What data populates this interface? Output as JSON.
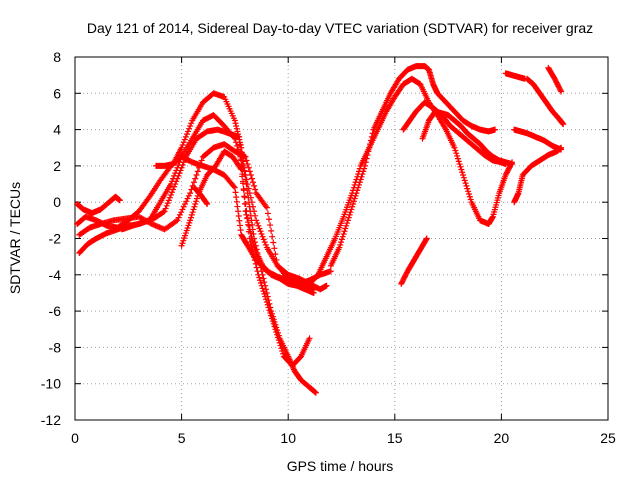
{
  "chart_data": {
    "type": "scatter",
    "title": "Day 121 of 2014, Sidereal Day-to-day VTEC variation (SDTVAR) for receiver graz",
    "xlabel": "GPS time / hours",
    "ylabel": "SDTVAR / TECUs",
    "xlim": [
      0,
      25
    ],
    "ylim": [
      -12,
      8
    ],
    "xticks": [
      "0",
      "5",
      "10",
      "15",
      "20",
      "25"
    ],
    "yticks": [
      "-12",
      "-10",
      "-8",
      "-6",
      "-4",
      "-2",
      "0",
      "2",
      "4",
      "6",
      "8"
    ],
    "grid": true,
    "legend": "none",
    "marker": "+",
    "series_color": "#ff0000",
    "series": [
      {
        "x": [
          0.1,
          0.5,
          1.0,
          1.5,
          2.0,
          2.5,
          3.0,
          3.5,
          4.0,
          4.5,
          5.0,
          5.5,
          6.0,
          6.5,
          7.0,
          7.5,
          7.8,
          8.1,
          8.5,
          9.0,
          9.5,
          10.0,
          10.5,
          11.0,
          11.3
        ],
        "y": [
          -1.2,
          -0.8,
          -1.0,
          -1.3,
          -1.4,
          -1.0,
          -0.5,
          0.3,
          1.2,
          2.0,
          2.5,
          2.2,
          2.0,
          1.8,
          1.5,
          0.8,
          -1.8,
          -2.4,
          -3.2,
          -3.8,
          -4.1,
          -4.3,
          -4.5,
          -4.7,
          -4.7
        ]
      },
      {
        "x": [
          0.2,
          0.6,
          1.0,
          1.5,
          2.0,
          2.5,
          3.0,
          3.5,
          4.0,
          4.5,
          5.0,
          5.5,
          6.0,
          6.5,
          7.0,
          7.5,
          8.0,
          8.5,
          9.0,
          9.5,
          10.0,
          10.5,
          11.0,
          11.5,
          11.8
        ],
        "y": [
          -2.8,
          -2.3,
          -2.0,
          -1.7,
          -1.5,
          -1.3,
          -1.2,
          -1.0,
          0.0,
          1.0,
          2.5,
          3.5,
          4.5,
          4.8,
          4.2,
          3.5,
          1.5,
          -1.0,
          -2.5,
          -3.5,
          -4.0,
          -4.2,
          -4.5,
          -4.8,
          -4.6
        ]
      },
      {
        "x": [
          0.2,
          0.7,
          1.2,
          1.8,
          2.4,
          3.0,
          3.6,
          4.2,
          4.8,
          5.4,
          6.0,
          6.5,
          7.0,
          7.5,
          8.0,
          8.5,
          9.0,
          9.5,
          10.0,
          10.5,
          11.0,
          11.5,
          12.0
        ],
        "y": [
          -1.8,
          -1.4,
          -1.2,
          -1.0,
          -0.9,
          -0.8,
          -1.2,
          -1.5,
          -1.0,
          0.5,
          2.5,
          3.0,
          3.2,
          2.8,
          2.5,
          0.5,
          -0.3,
          -3.5,
          -4.2,
          -4.5,
          -4.3,
          -4.0,
          -3.8
        ]
      },
      {
        "x": [
          2.2,
          2.7,
          3.2,
          3.7,
          4.2,
          4.7,
          5.2,
          5.7,
          6.2,
          6.7,
          7.2,
          7.7,
          8.0,
          8.4,
          8.8,
          9.2,
          9.6,
          10.0,
          10.4,
          10.8,
          11.2
        ],
        "y": [
          -1.5,
          -1.3,
          -1.1,
          -0.9,
          -0.5,
          1.0,
          2.5,
          3.5,
          3.9,
          4.0,
          3.8,
          3.6,
          -0.5,
          -2.5,
          -3.5,
          -4.0,
          -4.2,
          -4.5,
          -4.6,
          -4.8,
          -5.0
        ]
      },
      {
        "x": [
          3.8,
          4.2,
          4.6,
          5.0,
          5.5,
          6.0,
          6.5,
          7.0,
          7.5,
          7.8,
          8.1,
          8.4,
          8.8,
          9.2,
          9.6,
          10.0,
          10.3,
          10.6,
          11.0,
          11.3
        ],
        "y": [
          2.0,
          2.0,
          2.1,
          3.0,
          4.5,
          5.5,
          6.0,
          5.8,
          4.5,
          3.0,
          0.5,
          -2.0,
          -4.0,
          -6.0,
          -7.5,
          -8.5,
          -9.3,
          -9.8,
          -10.2,
          -10.5
        ]
      },
      {
        "x": [
          0.1,
          0.4,
          0.8,
          1.2,
          1.6,
          1.9,
          2.1
        ],
        "y": [
          -0.1,
          -0.4,
          -0.6,
          -0.4,
          0.0,
          0.3,
          0.1
        ]
      },
      {
        "x": [
          5.0,
          5.4,
          5.8,
          6.2,
          6.6,
          7.0,
          7.4,
          7.8,
          8.2,
          8.6,
          9.0,
          9.4,
          9.8,
          10.2,
          10.6,
          11.0
        ],
        "y": [
          -2.4,
          -1.0,
          0.5,
          1.5,
          2.0,
          2.8,
          2.5,
          1.8,
          -2.0,
          -4.0,
          -5.5,
          -7.0,
          -8.5,
          -9.0,
          -8.5,
          -7.5
        ]
      },
      {
        "x": [
          5.6,
          5.9,
          6.2
        ],
        "y": [
          0.8,
          0.4,
          -0.1
        ]
      },
      {
        "x": [
          11.0,
          11.4,
          11.8,
          12.2,
          12.6,
          13.0,
          13.4,
          13.8,
          14.2,
          14.6,
          15.0,
          15.4,
          15.8,
          16.2,
          16.6,
          17.0,
          17.4,
          17.8,
          18.2,
          18.6,
          19.0,
          19.4,
          19.6,
          19.9,
          20.2,
          20.5
        ],
        "y": [
          -4.5,
          -4.0,
          -3.0,
          -2.0,
          -0.8,
          0.5,
          2.0,
          3.0,
          4.0,
          5.0,
          5.8,
          6.5,
          6.8,
          6.5,
          5.5,
          4.8,
          4.0,
          3.0,
          1.5,
          0.0,
          -1.0,
          -1.2,
          -0.8,
          0.5,
          1.5,
          2.2
        ]
      },
      {
        "x": [
          12.0,
          12.4,
          12.8,
          13.2,
          13.6,
          14.0,
          14.4,
          14.8,
          15.2,
          15.6,
          16.0,
          16.4,
          16.6,
          16.8,
          17.0,
          17.4,
          17.8,
          18.2,
          18.6,
          19.0,
          19.4,
          19.7
        ],
        "y": [
          -3.5,
          -2.5,
          -1.0,
          0.5,
          2.0,
          4.0,
          5.0,
          6.0,
          6.8,
          7.3,
          7.5,
          7.5,
          7.3,
          6.5,
          6.0,
          5.5,
          5.0,
          4.5,
          4.2,
          4.0,
          3.9,
          4.0
        ]
      },
      {
        "x": [
          15.4,
          15.7,
          16.0,
          16.4,
          16.8,
          17.2,
          17.6,
          18.0,
          18.4,
          18.8,
          19.2,
          19.6,
          20.0,
          20.2
        ],
        "y": [
          4.0,
          4.5,
          5.0,
          5.5,
          5.2,
          4.8,
          4.2,
          3.8,
          3.4,
          3.0,
          2.6,
          2.3,
          2.2,
          2.1
        ]
      },
      {
        "x": [
          16.3,
          16.6,
          16.9,
          17.2,
          17.5,
          17.8,
          18.1,
          18.4,
          18.7,
          19.0,
          19.3,
          19.6,
          19.9,
          20.2,
          20.5
        ],
        "y": [
          3.5,
          4.5,
          5.0,
          4.9,
          4.8,
          4.5,
          4.2,
          3.8,
          3.5,
          3.2,
          2.8,
          2.5,
          2.3,
          2.2,
          2.1
        ]
      },
      {
        "x": [
          15.3,
          15.6,
          15.9,
          16.2,
          16.5
        ],
        "y": [
          -4.5,
          -3.8,
          -3.2,
          -2.6,
          -2.0
        ]
      },
      {
        "x": [
          20.2,
          20.5,
          20.8,
          21.1
        ],
        "y": [
          7.1,
          7.0,
          6.9,
          6.8
        ]
      },
      {
        "x": [
          20.6,
          20.9,
          21.2,
          21.6,
          22.0,
          22.4,
          22.8
        ],
        "y": [
          4.0,
          3.9,
          3.8,
          3.6,
          3.4,
          3.1,
          2.9
        ]
      },
      {
        "x": [
          20.6,
          20.8,
          21.0,
          21.4,
          21.8,
          22.2,
          22.6,
          22.8
        ],
        "y": [
          0.0,
          0.5,
          1.5,
          2.0,
          2.3,
          2.6,
          2.8,
          3.0
        ]
      },
      {
        "x": [
          21.2,
          21.5,
          21.8,
          22.1,
          22.4,
          22.7,
          22.9
        ],
        "y": [
          6.8,
          6.5,
          6.0,
          5.5,
          5.0,
          4.6,
          4.3
        ]
      },
      {
        "x": [
          22.2,
          22.5,
          22.8
        ],
        "y": [
          7.4,
          6.8,
          6.1
        ]
      }
    ]
  }
}
